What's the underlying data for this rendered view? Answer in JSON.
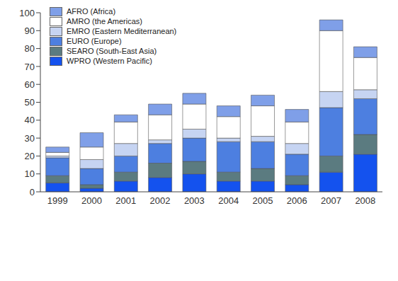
{
  "chart_data": {
    "type": "bar",
    "stacked": true,
    "grid": false,
    "legend": "upper left",
    "categories": [
      "1999",
      "2000",
      "2001",
      "2002",
      "2003",
      "2004",
      "2005",
      "2006",
      "2007",
      "2008"
    ],
    "ylim": [
      0,
      100
    ],
    "yticks": [
      0,
      10,
      20,
      30,
      40,
      50,
      60,
      70,
      80,
      90,
      100
    ],
    "series": [
      {
        "name": "AFRO (Africa)",
        "color": "#7f9fe8",
        "values": [
          3,
          8,
          4,
          6,
          6,
          6,
          6,
          7,
          6,
          6
        ]
      },
      {
        "name": "AMRO (the Americas)",
        "color": "#ffffff",
        "values": [
          2,
          7,
          12,
          14,
          14,
          12,
          17,
          12,
          34,
          18
        ]
      },
      {
        "name": "EMRO (Eastern Mediterranean)",
        "color": "#c6d4f2",
        "values": [
          1,
          5,
          7,
          2,
          5,
          2,
          3,
          6,
          9,
          5
        ]
      },
      {
        "name": "EURO (Europe)",
        "color": "#4d7fe0",
        "values": [
          10,
          9,
          9,
          11,
          13,
          17,
          15,
          12,
          27,
          20
        ]
      },
      {
        "name": "SEARO (South-East Asia)",
        "color": "#5b7b80",
        "values": [
          4,
          2,
          5,
          8,
          7,
          5,
          7,
          5,
          9,
          11
        ]
      },
      {
        "name": "WPRO (Western Pacific)",
        "color": "#1452ee",
        "values": [
          5,
          2,
          6,
          8,
          10,
          6,
          6,
          4,
          11,
          21
        ]
      }
    ]
  }
}
